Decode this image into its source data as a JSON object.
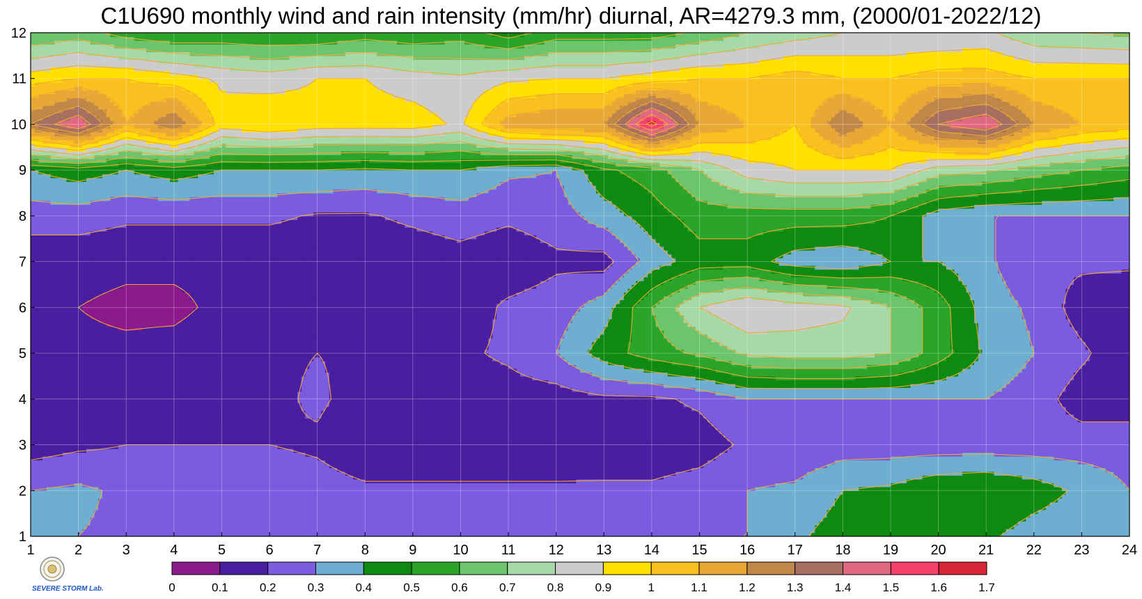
{
  "chart_data": {
    "type": "heatmap",
    "title": "C1U690 monthly wind and rain intensity (mm/hr) diurnal, AR=4279.3 mm, (2000/01-2022/12)",
    "xlabel": "",
    "ylabel": "",
    "x": [
      1,
      2,
      3,
      4,
      5,
      6,
      7,
      8,
      9,
      10,
      11,
      12,
      13,
      14,
      15,
      16,
      17,
      18,
      19,
      20,
      21,
      22,
      23,
      24
    ],
    "y": [
      1,
      2,
      3,
      4,
      5,
      6,
      7,
      8,
      9,
      10,
      11,
      12
    ],
    "xlim": [
      1,
      24
    ],
    "ylim": [
      1,
      12
    ],
    "grid": true,
    "z": [
      [
        0.3,
        0.3,
        0.28,
        0.28,
        0.3,
        0.3,
        0.3,
        0.3,
        0.28,
        0.2,
        0.2,
        0.2,
        0.22,
        0.25,
        0.3,
        0.3,
        0.38,
        0.45,
        0.5,
        0.48,
        0.42,
        0.35,
        0.32,
        0.3
      ],
      [
        0.3,
        0.32,
        0.28,
        0.25,
        0.27,
        0.28,
        0.25,
        0.22,
        0.22,
        0.22,
        0.22,
        0.22,
        0.22,
        0.22,
        0.25,
        0.3,
        0.32,
        0.4,
        0.42,
        0.48,
        0.5,
        0.45,
        0.38,
        0.3
      ],
      [
        0.15,
        0.18,
        0.2,
        0.2,
        0.2,
        0.2,
        0.18,
        0.12,
        0.12,
        0.12,
        0.12,
        0.12,
        0.13,
        0.13,
        0.15,
        0.22,
        0.22,
        0.25,
        0.25,
        0.25,
        0.25,
        0.25,
        0.25,
        0.25
      ],
      [
        0.12,
        0.12,
        0.18,
        0.12,
        0.16,
        0.17,
        0.22,
        0.15,
        0.15,
        0.14,
        0.15,
        0.15,
        0.18,
        0.18,
        0.22,
        0.3,
        0.3,
        0.3,
        0.3,
        0.3,
        0.3,
        0.25,
        0.15,
        0.15
      ],
      [
        0.12,
        0.12,
        0.12,
        0.13,
        0.15,
        0.18,
        0.2,
        0.18,
        0.18,
        0.18,
        0.22,
        0.3,
        0.45,
        0.55,
        0.62,
        0.72,
        0.75,
        0.75,
        0.7,
        0.55,
        0.38,
        0.3,
        0.22,
        0.12
      ],
      [
        0.12,
        0.1,
        0.08,
        0.08,
        0.12,
        0.12,
        0.12,
        0.12,
        0.12,
        0.14,
        0.22,
        0.25,
        0.35,
        0.6,
        0.8,
        0.9,
        0.85,
        0.82,
        0.7,
        0.55,
        0.35,
        0.28,
        0.15,
        0.12
      ],
      [
        0.13,
        0.13,
        0.12,
        0.12,
        0.12,
        0.12,
        0.12,
        0.13,
        0.14,
        0.16,
        0.13,
        0.18,
        0.16,
        0.35,
        0.45,
        0.45,
        0.35,
        0.32,
        0.4,
        0.4,
        0.32,
        0.22,
        0.22,
        0.22
      ],
      [
        0.25,
        0.25,
        0.22,
        0.22,
        0.22,
        0.22,
        0.19,
        0.19,
        0.22,
        0.25,
        0.22,
        0.25,
        0.35,
        0.45,
        0.55,
        0.55,
        0.55,
        0.55,
        0.5,
        0.35,
        0.3,
        0.3,
        0.3,
        0.3
      ],
      [
        0.4,
        0.45,
        0.4,
        0.45,
        0.4,
        0.4,
        0.4,
        0.38,
        0.4,
        0.4,
        0.32,
        0.3,
        0.48,
        0.55,
        0.7,
        0.85,
        0.9,
        0.9,
        0.9,
        0.75,
        0.72,
        0.65,
        0.6,
        0.55
      ],
      [
        1.3,
        1.5,
        1.1,
        1.3,
        0.95,
        1.0,
        0.95,
        0.95,
        0.95,
        0.88,
        1.15,
        1.2,
        1.2,
        1.65,
        1.2,
        1.1,
        1.0,
        1.3,
        1.1,
        1.4,
        1.5,
        1.2,
        1.1,
        1.05
      ],
      [
        0.95,
        1.0,
        1.0,
        0.95,
        0.88,
        0.85,
        0.9,
        0.9,
        0.85,
        0.82,
        0.88,
        0.9,
        0.9,
        0.95,
        1.0,
        1.0,
        1.05,
        1.0,
        1.0,
        1.05,
        1.05,
        1.0,
        1.0,
        1.0
      ],
      [
        0.6,
        0.65,
        0.55,
        0.5,
        0.52,
        0.5,
        0.5,
        0.55,
        0.52,
        0.55,
        0.45,
        0.55,
        0.55,
        0.55,
        0.62,
        0.7,
        0.75,
        0.8,
        0.8,
        0.8,
        0.82,
        0.72,
        0.7,
        0.68
      ]
    ],
    "colorbar": {
      "levels": [
        0,
        0.1,
        0.2,
        0.3,
        0.4,
        0.5,
        0.6,
        0.7,
        0.8,
        0.9,
        1,
        1.1,
        1.2,
        1.3,
        1.4,
        1.5,
        1.6,
        1.7
      ],
      "labels": [
        "0",
        "0.1",
        "0.2",
        "0.3",
        "0.4",
        "0.5",
        "0.6",
        "0.7",
        "0.8",
        "0.9",
        "1",
        "1.1",
        "1.2",
        "1.3",
        "1.4",
        "1.5",
        "1.6",
        "1.7"
      ],
      "colors": [
        "#8c1a8c",
        "#4a1ea0",
        "#7b5ce0",
        "#6eaed0",
        "#0f8a10",
        "#2aa52a",
        "#6cc46c",
        "#a6d9a6",
        "#cccccc",
        "#ffe000",
        "#fac020",
        "#e8a838",
        "#c08848",
        "#a57060",
        "#e06880",
        "#f5406a",
        "#d82838"
      ]
    },
    "contour_color": "#f0a830",
    "xticks": [
      "1",
      "2",
      "3",
      "4",
      "5",
      "6",
      "7",
      "8",
      "9",
      "10",
      "11",
      "12",
      "13",
      "14",
      "15",
      "16",
      "17",
      "18",
      "19",
      "20",
      "21",
      "22",
      "23",
      "24"
    ],
    "yticks": [
      "1",
      "2",
      "3",
      "4",
      "5",
      "6",
      "7",
      "8",
      "9",
      "10",
      "11",
      "12"
    ]
  },
  "logo": {
    "text": "SEVERE STORM Lab."
  }
}
